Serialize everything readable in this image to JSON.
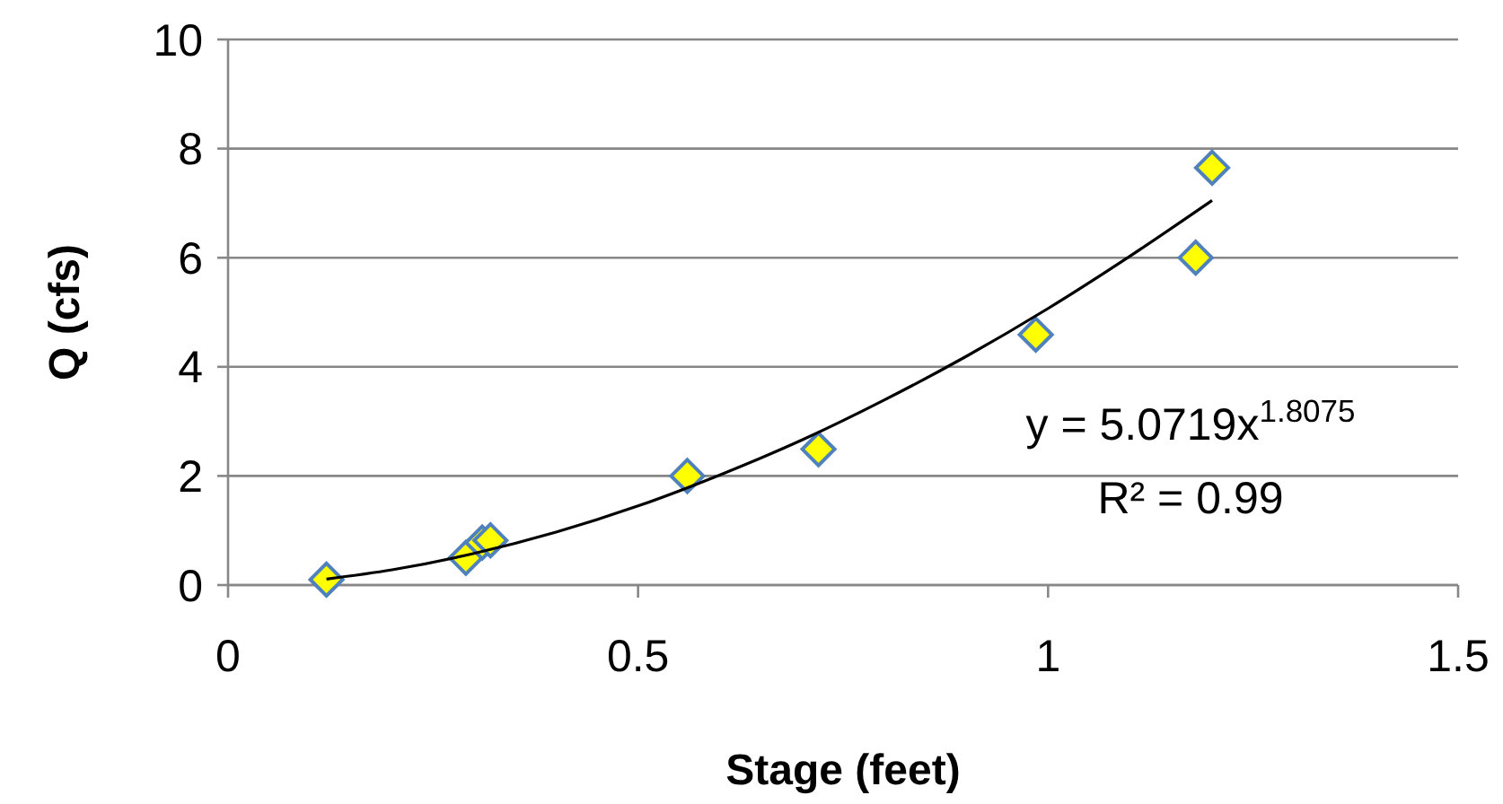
{
  "chart_data": {
    "type": "scatter",
    "xlabel": "Stage (feet)",
    "ylabel": "Q (cfs)",
    "xlim": [
      0,
      1.5
    ],
    "xticks": [
      0,
      0.5,
      1,
      1.5
    ],
    "ylim": [
      0,
      10
    ],
    "yticks": [
      0,
      2,
      4,
      6,
      8,
      10
    ],
    "grid": "y",
    "annotations": [
      "y = 5.0719x$^{1.8075}$",
      "R² = 0.99"
    ],
    "series": [
      {
        "color": "#ffff00",
        "marker": "diamond",
        "x": [
          0.12,
          0.29,
          0.31,
          0.32,
          0.56,
          0.72,
          0.985,
          1.18,
          1.2
        ],
        "values": [
          0.1,
          0.5,
          0.78,
          0.82,
          2.0,
          2.49,
          4.59,
          6.0,
          7.65
        ]
      },
      {
        "type": "line",
        "color": "#000000",
        "marker": "none",
        "line_style": "solid",
        "x": [
          0.12,
          0.2,
          0.3,
          0.4,
          0.5,
          0.6,
          0.7,
          0.8,
          0.9,
          1.0,
          1.1,
          1.2
        ],
        "values": [
          0.11,
          0.28,
          0.58,
          0.97,
          1.45,
          2.02,
          2.66,
          3.39,
          4.19,
          5.07,
          6.03,
          7.05
        ]
      }
    ]
  }
}
